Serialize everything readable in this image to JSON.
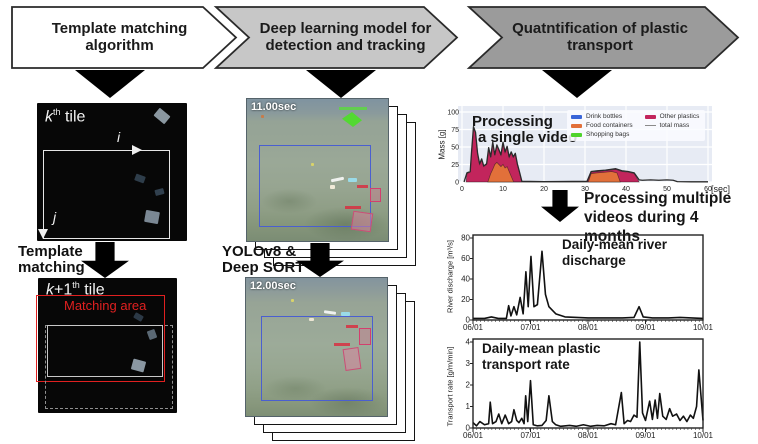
{
  "banners": [
    {
      "label_lines": [
        "Template matching",
        "algorithm"
      ],
      "fill": "#ffffff"
    },
    {
      "label_lines": [
        "Deep learning model for",
        "detection and tracking"
      ],
      "fill": "#c7c7c7"
    },
    {
      "label_lines": [
        "Quatntification of plastic",
        "transport"
      ],
      "fill": "#9b9b9b"
    }
  ],
  "left": {
    "tile1": {
      "k": "k",
      "sup": "th",
      "rest": " tile",
      "axis_i": "i",
      "axis_j": "j"
    },
    "step_lines": [
      "Template",
      "matching"
    ],
    "tile2": {
      "k": "k",
      "plus1": "+1",
      "sup": "th",
      "rest": " tile",
      "matching_area": "Matching area",
      "matching_color": "#e02020"
    }
  },
  "middle": {
    "frame1_time": "11.00sec",
    "frame2_time": "12.00sec",
    "step_lines": [
      "YOLOv8 &",
      "Deep SORT"
    ],
    "detection_box_color": "#4a5fd0",
    "shopping_bag_color": "#53d932",
    "other_plastic_color": "#d23f6e"
  },
  "right": {
    "multiple_lines": [
      "Processing multiple",
      "videos during 4 months"
    ]
  },
  "chart_data": [
    {
      "type": "area",
      "title_lines": [
        "Processing",
        "a single video"
      ],
      "ylabel": "Mass [g]",
      "x_unit": "[sec]",
      "xlim": [
        0,
        60
      ],
      "ylim": [
        0,
        100
      ],
      "xticks": [
        0,
        10,
        20,
        30,
        40,
        50,
        60
      ],
      "yticks": [
        0,
        25,
        50,
        75,
        100
      ],
      "grid": true,
      "bg": "#e7ebf4",
      "legend_position": "upper right",
      "legend": [
        {
          "label": "Drink bottles",
          "color": "#3a66d8",
          "kind": "patch"
        },
        {
          "label": "Food containers",
          "color": "#e2703a",
          "kind": "patch"
        },
        {
          "label": "Shopping bags",
          "color": "#4fd42c",
          "kind": "patch"
        },
        {
          "label": "Other plastics",
          "color": "#c2255c",
          "kind": "patch"
        },
        {
          "label": "total mass",
          "color": "#8a8a8a",
          "kind": "line"
        }
      ],
      "areas": [
        {
          "name": "Other plastics",
          "color": "#c2255c",
          "points": [
            [
              1,
              0
            ],
            [
              1.2,
              12
            ],
            [
              2,
              14
            ],
            [
              2.3,
              40
            ],
            [
              2.8,
              78
            ],
            [
              3.3,
              70
            ],
            [
              3.8,
              40
            ],
            [
              4.3,
              25
            ],
            [
              4.8,
              32
            ],
            [
              5.3,
              22
            ],
            [
              6,
              25
            ],
            [
              6.5,
              48
            ],
            [
              7,
              35
            ],
            [
              7.5,
              56
            ],
            [
              8,
              38
            ],
            [
              8.5,
              52
            ],
            [
              9,
              45
            ],
            [
              9.5,
              38
            ],
            [
              10,
              56
            ],
            [
              10.5,
              42
            ],
            [
              11,
              50
            ],
            [
              11.5,
              35
            ],
            [
              12,
              42
            ],
            [
              12.5,
              35
            ],
            [
              13,
              40
            ],
            [
              13.5,
              25
            ],
            [
              14,
              14
            ],
            [
              14.6,
              0
            ],
            [
              30.5,
              0
            ],
            [
              31.5,
              14
            ],
            [
              33,
              15
            ],
            [
              35,
              16
            ],
            [
              37.5,
              18
            ],
            [
              39,
              15
            ],
            [
              40.5,
              14
            ],
            [
              42,
              12
            ],
            [
              43.2,
              0
            ]
          ]
        },
        {
          "name": "Food containers",
          "color": "#e2703a",
          "points": [
            [
              6.3,
              0
            ],
            [
              7,
              12
            ],
            [
              7.5,
              18
            ],
            [
              8,
              25
            ],
            [
              8.5,
              28
            ],
            [
              9,
              25
            ],
            [
              9.5,
              22
            ],
            [
              10,
              25
            ],
            [
              10.5,
              20
            ],
            [
              11,
              22
            ],
            [
              11.5,
              15
            ],
            [
              12,
              8
            ],
            [
              12.6,
              0
            ],
            [
              30.8,
              0
            ],
            [
              31.5,
              12
            ],
            [
              33,
              13
            ],
            [
              35,
              14
            ],
            [
              36.5,
              15
            ],
            [
              37.8,
              13
            ],
            [
              38.6,
              0
            ]
          ]
        }
      ],
      "lines": [
        {
          "name": "total mass",
          "color": "#2b2b2b",
          "width": 1.3,
          "points": [
            [
              0.5,
              0
            ],
            [
              1.2,
              13
            ],
            [
              2,
              15
            ],
            [
              2.3,
              41
            ],
            [
              2.8,
              79
            ],
            [
              3.3,
              71
            ],
            [
              3.8,
              41
            ],
            [
              4.3,
              26
            ],
            [
              4.8,
              33
            ],
            [
              5.3,
              23
            ],
            [
              6,
              26
            ],
            [
              6.5,
              49
            ],
            [
              7,
              36
            ],
            [
              7.5,
              57
            ],
            [
              8,
              39
            ],
            [
              8.5,
              53
            ],
            [
              9,
              46
            ],
            [
              9.5,
              39
            ],
            [
              10,
              57
            ],
            [
              10.5,
              43
            ],
            [
              11,
              51
            ],
            [
              11.5,
              36
            ],
            [
              12,
              43
            ],
            [
              12.5,
              36
            ],
            [
              13,
              41
            ],
            [
              13.5,
              26
            ],
            [
              14,
              15
            ],
            [
              14.6,
              1
            ],
            [
              20,
              0.5
            ],
            [
              30.5,
              1
            ],
            [
              31.5,
              15
            ],
            [
              33,
              16
            ],
            [
              35,
              17
            ],
            [
              37.5,
              19
            ],
            [
              39,
              16
            ],
            [
              40.5,
              15
            ],
            [
              42,
              13
            ],
            [
              43.2,
              3
            ],
            [
              44,
              2.5
            ],
            [
              46,
              3
            ],
            [
              48,
              2.5
            ],
            [
              50,
              3
            ],
            [
              51.5,
              2.5
            ],
            [
              52.5,
              0.5
            ],
            [
              56,
              0.3
            ],
            [
              60,
              0.3
            ]
          ]
        }
      ]
    },
    {
      "type": "line",
      "title_lines": [
        "Daily-mean river",
        "discharge"
      ],
      "ylabel": "River discharge [m³/s]",
      "xlim": [
        0,
        1
      ],
      "ylim": [
        0,
        80
      ],
      "yticks": [
        0,
        20,
        40,
        60,
        80
      ],
      "xtick_labels": [
        "06/01",
        "07/01",
        "08/01",
        "09/01",
        "10/01"
      ],
      "grid": false,
      "lines": [
        {
          "name": "river discharge",
          "color": "#111111",
          "width": 1.6,
          "points": [
            [
              0,
              1.5
            ],
            [
              0.05,
              1.5
            ],
            [
              0.08,
              3
            ],
            [
              0.11,
              1.5
            ],
            [
              0.145,
              1.5
            ],
            [
              0.155,
              14
            ],
            [
              0.165,
              4
            ],
            [
              0.178,
              13
            ],
            [
              0.19,
              5
            ],
            [
              0.205,
              22
            ],
            [
              0.218,
              6
            ],
            [
              0.23,
              47
            ],
            [
              0.24,
              13
            ],
            [
              0.252,
              62
            ],
            [
              0.265,
              13
            ],
            [
              0.28,
              15
            ],
            [
              0.3,
              67
            ],
            [
              0.315,
              25
            ],
            [
              0.33,
              13
            ],
            [
              0.36,
              6
            ],
            [
              0.4,
              3
            ],
            [
              0.45,
              2.5
            ],
            [
              0.5,
              2
            ],
            [
              0.55,
              2
            ],
            [
              0.6,
              2
            ],
            [
              0.65,
              2
            ],
            [
              0.7,
              2.5
            ],
            [
              0.722,
              13
            ],
            [
              0.74,
              3
            ],
            [
              0.78,
              2
            ],
            [
              0.85,
              2
            ],
            [
              0.9,
              2.5
            ],
            [
              0.95,
              2
            ],
            [
              1,
              1.5
            ]
          ]
        }
      ]
    },
    {
      "type": "line",
      "title_lines": [
        "Daily-mean plastic",
        "transport rate"
      ],
      "ylabel": "Transport rate [g/m/min]",
      "xlim": [
        0,
        1
      ],
      "ylim": [
        0,
        4
      ],
      "yticks": [
        0,
        1,
        2,
        3,
        4
      ],
      "xtick_labels": [
        "06/01",
        "07/01",
        "08/01",
        "09/01",
        "10/01"
      ],
      "grid": false,
      "lines": [
        {
          "name": "plastic transport rate",
          "color": "#111111",
          "width": 1.6,
          "points": [
            [
              0,
              0.25
            ],
            [
              0.015,
              0.1
            ],
            [
              0.03,
              0.3
            ],
            [
              0.05,
              0.15
            ],
            [
              0.068,
              0.2
            ],
            [
              0.075,
              1.2
            ],
            [
              0.085,
              0.2
            ],
            [
              0.1,
              0.3
            ],
            [
              0.112,
              0.65
            ],
            [
              0.125,
              0.2
            ],
            [
              0.14,
              0.6
            ],
            [
              0.155,
              0.2
            ],
            [
              0.168,
              0.3
            ],
            [
              0.178,
              0.85
            ],
            [
              0.19,
              0.35
            ],
            [
              0.2,
              0.25
            ],
            [
              0.212,
              0.45
            ],
            [
              0.222,
              0.2
            ],
            [
              0.229,
              1.5
            ],
            [
              0.238,
              0.3
            ],
            [
              0.25,
              2.2
            ],
            [
              0.262,
              0.15
            ],
            [
              0.28,
              0.1
            ],
            [
              0.3,
              0.12
            ],
            [
              0.318,
              0.35
            ],
            [
              0.33,
              1.5
            ],
            [
              0.345,
              0.3
            ],
            [
              0.36,
              0.15
            ],
            [
              0.38,
              0.08
            ],
            [
              0.42,
              0.12
            ],
            [
              0.45,
              0.08
            ],
            [
              0.48,
              0.15
            ],
            [
              0.51,
              0.08
            ],
            [
              0.54,
              0.12
            ],
            [
              0.57,
              0.1
            ],
            [
              0.6,
              0.2
            ],
            [
              0.62,
              0.15
            ],
            [
              0.645,
              1.65
            ],
            [
              0.657,
              0.2
            ],
            [
              0.672,
              0.35
            ],
            [
              0.685,
              0.3
            ],
            [
              0.7,
              0.6
            ],
            [
              0.713,
              0.5
            ],
            [
              0.725,
              4.0
            ],
            [
              0.737,
              0.7
            ],
            [
              0.75,
              0.35
            ],
            [
              0.768,
              1.25
            ],
            [
              0.78,
              0.4
            ],
            [
              0.792,
              1.3
            ],
            [
              0.802,
              0.45
            ],
            [
              0.812,
              1.6
            ],
            [
              0.825,
              0.55
            ],
            [
              0.84,
              0.4
            ],
            [
              0.855,
              0.9
            ],
            [
              0.868,
              0.55
            ],
            [
              0.885,
              0.65
            ],
            [
              0.9,
              0.35
            ],
            [
              0.915,
              0.55
            ],
            [
              0.93,
              0.3
            ],
            [
              0.945,
              0.6
            ],
            [
              0.958,
              0.45
            ],
            [
              0.972,
              1.0
            ],
            [
              0.982,
              2.7
            ],
            [
              1,
              0.35
            ]
          ]
        }
      ]
    }
  ]
}
